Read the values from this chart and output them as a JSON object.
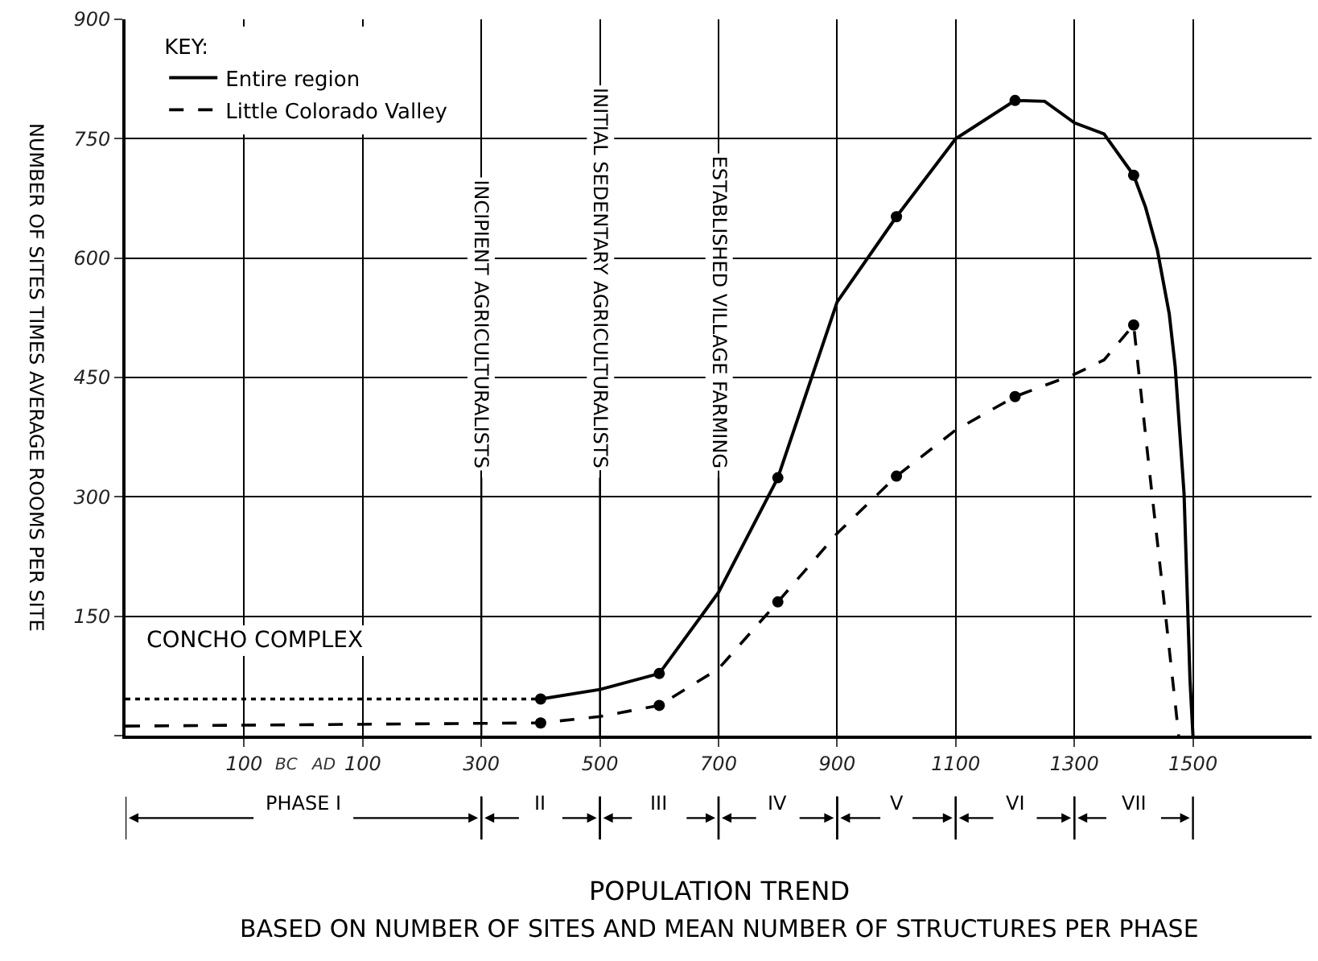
{
  "chart_data": {
    "type": "line",
    "title": "POPULATION TREND",
    "subtitle": "BASED ON NUMBER OF SITES AND MEAN NUMBER OF STRUCTURES PER PHASE",
    "ylabel": "NUMBER OF SITES TIMES AVERAGE ROOMS PER SITE",
    "legend_title": "KEY:",
    "legend": "top left",
    "grid": true,
    "xlim": [
      -300,
      1700
    ],
    "ylim": [
      0,
      900
    ],
    "xticks": [
      {
        "value": -100,
        "label": "100"
      },
      {
        "value": 100,
        "label": "100"
      },
      300,
      500,
      700,
      900,
      1100,
      1300,
      1500
    ],
    "yticks": [
      {
        "value": 0,
        "label": null
      },
      150,
      300,
      450,
      600,
      750,
      900
    ],
    "series": [
      {
        "color": "#000000",
        "line_style": "dotted",
        "x": [
          -300,
          400
        ],
        "values": [
          46,
          46
        ]
      },
      {
        "name": "Entire region",
        "color": "#000000",
        "line_style": "solid",
        "x": [
          400,
          500,
          600,
          700,
          800,
          900,
          1000,
          1100,
          1200,
          1250,
          1300,
          1350,
          1400,
          1420,
          1440,
          1460,
          1470,
          1485,
          1495,
          1500
        ],
        "values": [
          46,
          58,
          78,
          180,
          324,
          545,
          652,
          750,
          798,
          797,
          770,
          756,
          704,
          664,
          610,
          530,
          464,
          304,
          70,
          0
        ]
      },
      {
        "name": "Little Colorado Valley",
        "color": "#000000",
        "line_style": "dashed",
        "x": [
          -300,
          400,
          500,
          600,
          700,
          800,
          900,
          1000,
          1100,
          1200,
          1300,
          1350,
          1400,
          1427,
          1454,
          1476
        ],
        "values": [
          12,
          16,
          24,
          38,
          84,
          168,
          254,
          326,
          384,
          426,
          454,
          472,
          516,
          330,
          150,
          0
        ]
      },
      {
        "type": "scatter",
        "color": "#000000",
        "marker": "circle",
        "x": [
          400,
          600,
          800,
          1000,
          1200,
          1400
        ],
        "values": [
          46,
          78,
          324,
          652,
          798,
          704
        ]
      },
      {
        "type": "scatter",
        "color": "#000000",
        "marker": "circle",
        "x": [
          400,
          600,
          800,
          1000,
          1200,
          1400
        ],
        "values": [
          16,
          38,
          168,
          326,
          426,
          516
        ]
      }
    ],
    "ref_lines": [
      {
        "axis": "x",
        "value": 300,
        "label": "INCIPIENT AGRICULTURALISTS"
      },
      {
        "axis": "x",
        "value": 500,
        "label": "INITIAL SEDENTARY AGRICULTURALISTS"
      },
      {
        "axis": "x",
        "value": 700,
        "label": "ESTABLISHED VILLAGE FARMING"
      }
    ],
    "annotations": [
      "CONCHO COMPLEX",
      "BC",
      "AD",
      "PHASE I",
      "II",
      "III",
      "IV",
      "V",
      "VI",
      "VII"
    ]
  }
}
